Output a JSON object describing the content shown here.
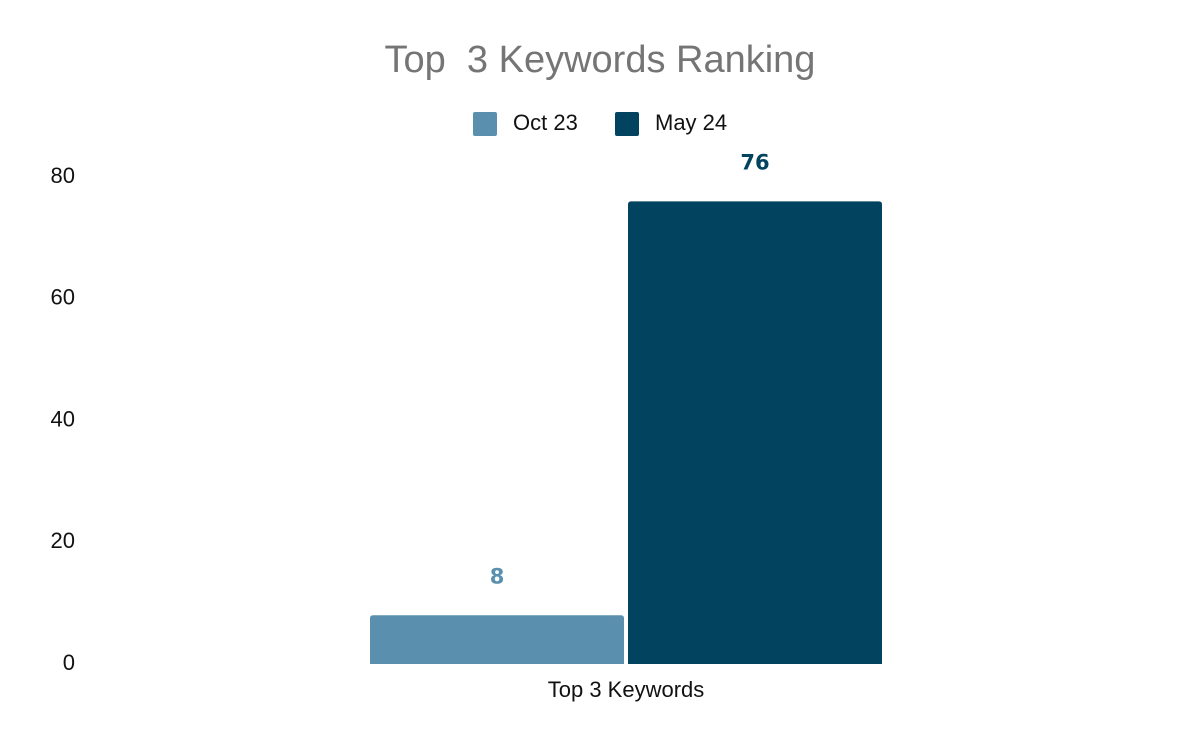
{
  "chart_data": {
    "type": "bar",
    "title": "Top  3 Keywords Ranking",
    "categories": [
      "Top 3 Keywords"
    ],
    "series": [
      {
        "name": "Oct 23",
        "color": "#5a90ad",
        "values": [
          8
        ]
      },
      {
        "name": "May 24",
        "color": "#02445f",
        "values": [
          76
        ]
      }
    ],
    "ylim": [
      0,
      80
    ],
    "yticks": [
      0,
      20,
      40,
      60,
      80
    ],
    "grid": false,
    "legend": "top",
    "data_labels": true
  }
}
